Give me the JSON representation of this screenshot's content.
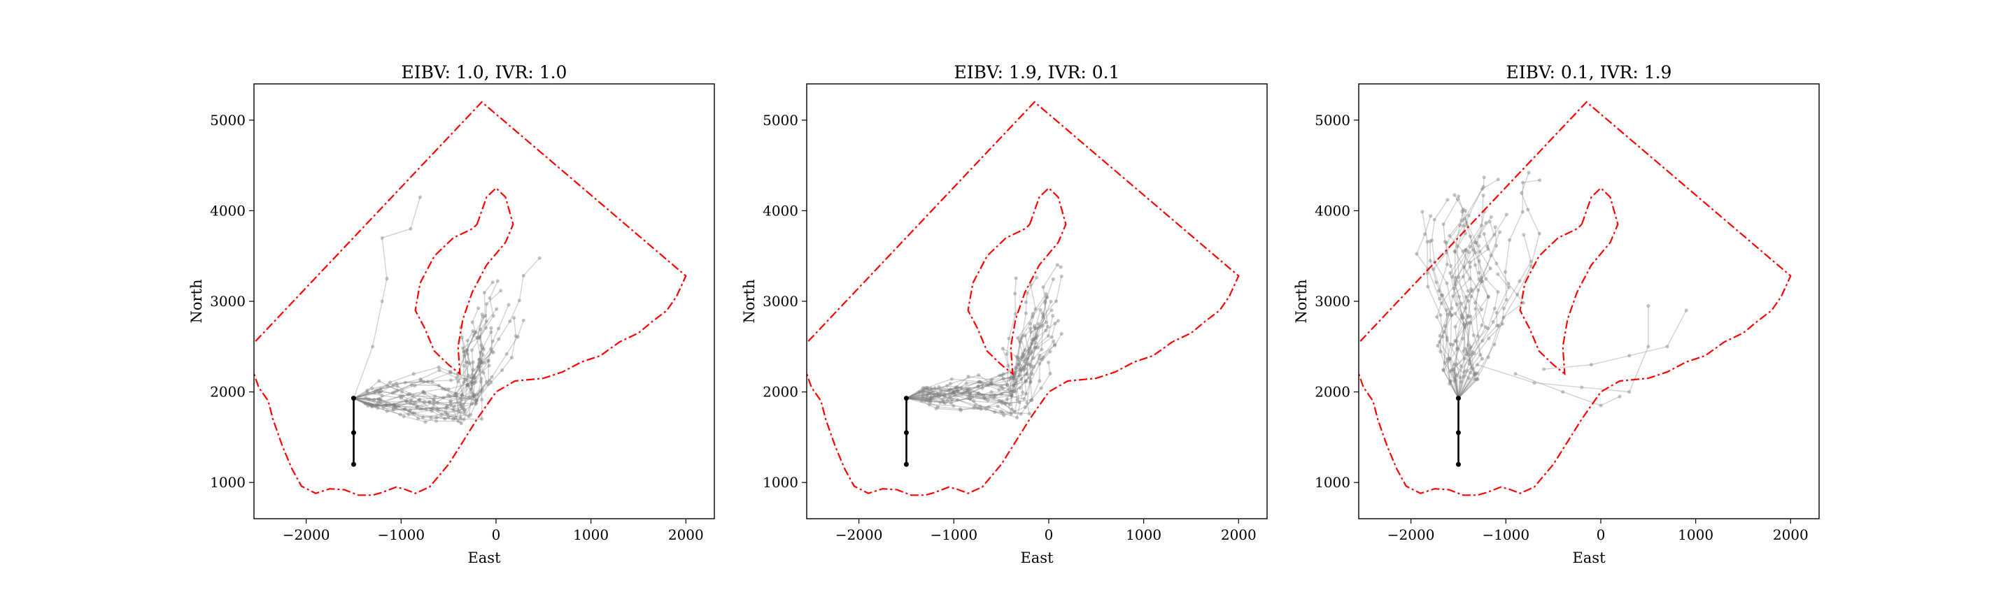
{
  "figure": {
    "background": "#ffffff"
  },
  "colors": {
    "boundary": "#ff0000",
    "path": "#000000",
    "trajectory": "#7f7f7f"
  },
  "chart_data": [
    {
      "type": "line",
      "title": "EIBV: 1.0, IVR: 1.0",
      "xlabel": "East",
      "ylabel": "North",
      "xlim": [
        -2550,
        2300
      ],
      "ylim": [
        600,
        5400
      ],
      "xticks": [
        -2000,
        -1000,
        0,
        1000,
        2000
      ],
      "xtick_labels": [
        "−2000",
        "−1000",
        "0",
        "1000",
        "2000"
      ],
      "yticks": [
        1000,
        2000,
        3000,
        4000,
        5000
      ],
      "ytick_labels": [
        "1000",
        "2000",
        "3000",
        "4000",
        "5000"
      ],
      "grid": false,
      "boundary_outer": [
        [
          -2650,
          2430
        ],
        [
          -150,
          5200
        ],
        [
          2000,
          3280
        ],
        [
          1900,
          3050
        ],
        [
          1800,
          2900
        ],
        [
          1650,
          2780
        ],
        [
          1500,
          2650
        ],
        [
          1300,
          2550
        ],
        [
          1100,
          2400
        ],
        [
          900,
          2330
        ],
        [
          700,
          2220
        ],
        [
          500,
          2150
        ],
        [
          300,
          2130
        ],
        [
          200,
          2120
        ],
        [
          0,
          2000
        ],
        [
          -200,
          1700
        ],
        [
          -350,
          1450
        ],
        [
          -500,
          1200
        ],
        [
          -700,
          950
        ],
        [
          -850,
          880
        ],
        [
          -950,
          920
        ],
        [
          -1050,
          950
        ],
        [
          -1200,
          890
        ],
        [
          -1300,
          860
        ],
        [
          -1450,
          860
        ],
        [
          -1600,
          920
        ],
        [
          -1750,
          930
        ],
        [
          -1900,
          880
        ],
        [
          -2050,
          960
        ],
        [
          -2150,
          1150
        ],
        [
          -2250,
          1400
        ],
        [
          -2350,
          1700
        ],
        [
          -2400,
          1900
        ],
        [
          -2500,
          2050
        ],
        [
          -2550,
          2200
        ],
        [
          -2650,
          2430
        ]
      ],
      "boundary_inner": [
        [
          -200,
          3850
        ],
        [
          -100,
          4150
        ],
        [
          0,
          4250
        ],
        [
          100,
          4150
        ],
        [
          180,
          3850
        ],
        [
          100,
          3650
        ],
        [
          -100,
          3400
        ],
        [
          -250,
          3100
        ],
        [
          -350,
          2800
        ],
        [
          -400,
          2500
        ],
        [
          -380,
          2200
        ],
        [
          -500,
          2300
        ],
        [
          -650,
          2450
        ],
        [
          -750,
          2700
        ],
        [
          -850,
          2900
        ],
        [
          -800,
          3200
        ],
        [
          -650,
          3500
        ],
        [
          -450,
          3700
        ],
        [
          -250,
          3800
        ],
        [
          -200,
          3850
        ]
      ],
      "path_start": [
        [
          -1500,
          1200
        ],
        [
          -1500,
          1550
        ],
        [
          -1500,
          1930
        ]
      ],
      "trajectory_mode": "right"
    },
    {
      "type": "line",
      "title": "EIBV: 1.9, IVR: 0.1",
      "xlabel": "East",
      "ylabel": "North",
      "xlim": [
        -2550,
        2300
      ],
      "ylim": [
        600,
        5400
      ],
      "xticks": [
        -2000,
        -1000,
        0,
        1000,
        2000
      ],
      "xtick_labels": [
        "−2000",
        "−1000",
        "0",
        "1000",
        "2000"
      ],
      "yticks": [
        1000,
        2000,
        3000,
        4000,
        5000
      ],
      "ytick_labels": [
        "1000",
        "2000",
        "3000",
        "4000",
        "5000"
      ],
      "grid": false,
      "boundary_outer": [
        [
          -2650,
          2430
        ],
        [
          -150,
          5200
        ],
        [
          2000,
          3280
        ],
        [
          1900,
          3050
        ],
        [
          1800,
          2900
        ],
        [
          1650,
          2780
        ],
        [
          1500,
          2650
        ],
        [
          1300,
          2550
        ],
        [
          1100,
          2400
        ],
        [
          900,
          2330
        ],
        [
          700,
          2220
        ],
        [
          500,
          2150
        ],
        [
          300,
          2130
        ],
        [
          200,
          2120
        ],
        [
          0,
          2000
        ],
        [
          -200,
          1700
        ],
        [
          -350,
          1450
        ],
        [
          -500,
          1200
        ],
        [
          -700,
          950
        ],
        [
          -850,
          880
        ],
        [
          -950,
          920
        ],
        [
          -1050,
          950
        ],
        [
          -1200,
          890
        ],
        [
          -1300,
          860
        ],
        [
          -1450,
          860
        ],
        [
          -1600,
          920
        ],
        [
          -1750,
          930
        ],
        [
          -1900,
          880
        ],
        [
          -2050,
          960
        ],
        [
          -2150,
          1150
        ],
        [
          -2250,
          1400
        ],
        [
          -2350,
          1700
        ],
        [
          -2400,
          1900
        ],
        [
          -2500,
          2050
        ],
        [
          -2550,
          2200
        ],
        [
          -2650,
          2430
        ]
      ],
      "boundary_inner": [
        [
          -200,
          3850
        ],
        [
          -100,
          4150
        ],
        [
          0,
          4250
        ],
        [
          100,
          4150
        ],
        [
          180,
          3850
        ],
        [
          100,
          3650
        ],
        [
          -100,
          3400
        ],
        [
          -250,
          3100
        ],
        [
          -350,
          2800
        ],
        [
          -400,
          2500
        ],
        [
          -380,
          2200
        ],
        [
          -500,
          2300
        ],
        [
          -650,
          2450
        ],
        [
          -750,
          2700
        ],
        [
          -850,
          2900
        ],
        [
          -800,
          3200
        ],
        [
          -650,
          3500
        ],
        [
          -450,
          3700
        ],
        [
          -250,
          3800
        ],
        [
          -200,
          3850
        ]
      ],
      "path_start": [
        [
          -1500,
          1200
        ],
        [
          -1500,
          1550
        ],
        [
          -1500,
          1930
        ]
      ],
      "trajectory_mode": "right_tight"
    },
    {
      "type": "line",
      "title": "EIBV: 0.1, IVR: 1.9",
      "xlabel": "East",
      "ylabel": "North",
      "xlim": [
        -2550,
        2300
      ],
      "ylim": [
        600,
        5400
      ],
      "xticks": [
        -2000,
        -1000,
        0,
        1000,
        2000
      ],
      "xtick_labels": [
        "−2000",
        "−1000",
        "0",
        "1000",
        "2000"
      ],
      "yticks": [
        1000,
        2000,
        3000,
        4000,
        5000
      ],
      "ytick_labels": [
        "1000",
        "2000",
        "3000",
        "4000",
        "5000"
      ],
      "grid": false,
      "boundary_outer": [
        [
          -2650,
          2430
        ],
        [
          -150,
          5200
        ],
        [
          2000,
          3280
        ],
        [
          1900,
          3050
        ],
        [
          1800,
          2900
        ],
        [
          1650,
          2780
        ],
        [
          1500,
          2650
        ],
        [
          1300,
          2550
        ],
        [
          1100,
          2400
        ],
        [
          900,
          2330
        ],
        [
          700,
          2220
        ],
        [
          500,
          2150
        ],
        [
          300,
          2130
        ],
        [
          200,
          2120
        ],
        [
          0,
          2000
        ],
        [
          -200,
          1700
        ],
        [
          -350,
          1450
        ],
        [
          -500,
          1200
        ],
        [
          -700,
          950
        ],
        [
          -850,
          880
        ],
        [
          -950,
          920
        ],
        [
          -1050,
          950
        ],
        [
          -1200,
          890
        ],
        [
          -1300,
          860
        ],
        [
          -1450,
          860
        ],
        [
          -1600,
          920
        ],
        [
          -1750,
          930
        ],
        [
          -1900,
          880
        ],
        [
          -2050,
          960
        ],
        [
          -2150,
          1150
        ],
        [
          -2250,
          1400
        ],
        [
          -2350,
          1700
        ],
        [
          -2400,
          1900
        ],
        [
          -2500,
          2050
        ],
        [
          -2550,
          2200
        ],
        [
          -2650,
          2430
        ]
      ],
      "boundary_inner": [
        [
          -200,
          3850
        ],
        [
          -100,
          4150
        ],
        [
          0,
          4250
        ],
        [
          100,
          4150
        ],
        [
          180,
          3850
        ],
        [
          100,
          3650
        ],
        [
          -100,
          3400
        ],
        [
          -250,
          3100
        ],
        [
          -350,
          2800
        ],
        [
          -400,
          2500
        ],
        [
          -380,
          2200
        ],
        [
          -500,
          2300
        ],
        [
          -650,
          2450
        ],
        [
          -750,
          2700
        ],
        [
          -850,
          2900
        ],
        [
          -800,
          3200
        ],
        [
          -650,
          3500
        ],
        [
          -450,
          3700
        ],
        [
          -250,
          3800
        ],
        [
          -200,
          3850
        ]
      ],
      "path_start": [
        [
          -1500,
          1200
        ],
        [
          -1500,
          1550
        ],
        [
          -1500,
          1930
        ]
      ],
      "trajectory_mode": "up"
    }
  ]
}
